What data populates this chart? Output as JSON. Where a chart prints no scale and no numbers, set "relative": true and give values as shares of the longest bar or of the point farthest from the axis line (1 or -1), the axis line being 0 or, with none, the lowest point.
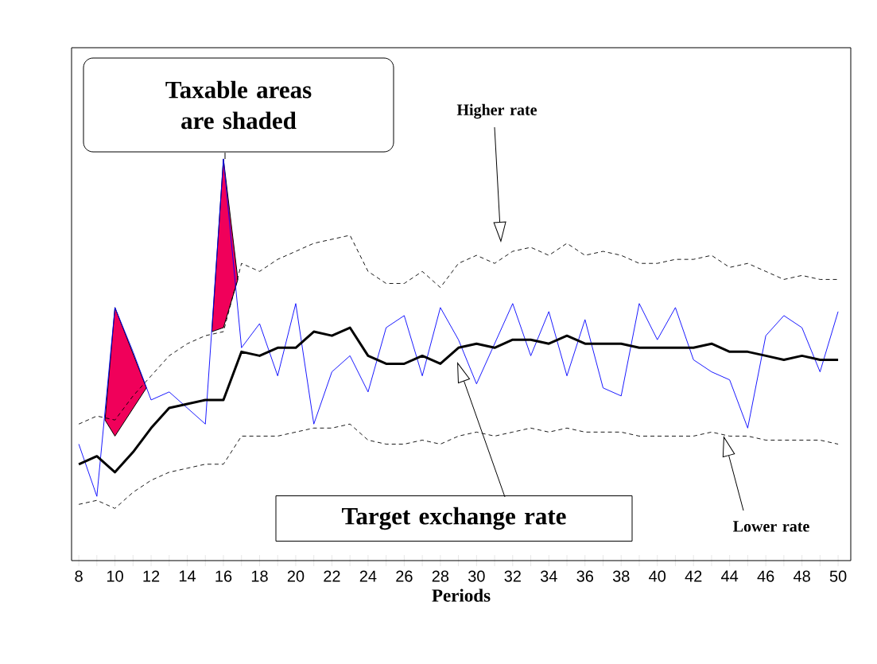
{
  "chart_data": {
    "type": "line",
    "relative": true,
    "xlabel": "Periods",
    "xlim": [
      7.6,
      50.7
    ],
    "xticks": [
      8,
      {
        "value": 9,
        "label": null
      },
      10,
      {
        "value": 11,
        "label": null
      },
      12,
      {
        "value": 13,
        "label": null
      },
      14,
      {
        "value": 15,
        "label": null
      },
      16,
      {
        "value": 17,
        "label": null
      },
      18,
      {
        "value": 19,
        "label": null
      },
      20,
      {
        "value": 21,
        "label": null
      },
      22,
      {
        "value": 23,
        "label": null
      },
      24,
      {
        "value": 25,
        "label": null
      },
      26,
      {
        "value": 27,
        "label": null
      },
      28,
      {
        "value": 29,
        "label": null
      },
      30,
      {
        "value": 31,
        "label": null
      },
      32,
      {
        "value": 33,
        "label": null
      },
      34,
      {
        "value": 35,
        "label": null
      },
      36,
      {
        "value": 37,
        "label": null
      },
      38,
      {
        "value": 39,
        "label": null
      },
      40,
      {
        "value": 41,
        "label": null
      },
      42,
      {
        "value": 43,
        "label": null
      },
      44,
      {
        "value": 45,
        "label": null
      },
      46,
      {
        "value": 47,
        "label": null
      },
      48,
      {
        "value": 49,
        "label": null
      },
      50
    ],
    "x": [
      8,
      9,
      10,
      11,
      12,
      13,
      14,
      15,
      16,
      17,
      18,
      19,
      20,
      21,
      22,
      23,
      24,
      25,
      26,
      27,
      28,
      29,
      30,
      31,
      32,
      33,
      34,
      35,
      36,
      37,
      38,
      39,
      40,
      41,
      42,
      43,
      44,
      45,
      46,
      47,
      48,
      49,
      50
    ],
    "series": [
      {
        "type": "area",
        "color": "#f0005a",
        "x": [
          9.45,
          10,
          11.74
        ],
        "values": [
          0.35,
          0.63,
          0.43
        ]
      },
      {
        "type": "line",
        "color": "#000000",
        "x": [
          9.45,
          10,
          11.74
        ],
        "values": [
          0.35,
          0.31,
          0.43
        ]
      },
      {
        "type": "area",
        "color": "#f0005a",
        "x": [
          15.36,
          16,
          16.8
        ],
        "values": [
          0.57,
          1.0,
          0.7
        ]
      },
      {
        "type": "line",
        "color": "#000000",
        "x": [
          15.36,
          16,
          16.8
        ],
        "values": [
          0.57,
          0.58,
          0.7
        ]
      },
      {
        "color": "#000000",
        "line_style": "dashed",
        "values": [
          0.34,
          0.36,
          0.35,
          0.41,
          0.46,
          0.51,
          0.54,
          0.56,
          0.57,
          0.74,
          0.72,
          0.75,
          0.77,
          0.79,
          0.8,
          0.81,
          0.72,
          0.69,
          0.69,
          0.72,
          0.68,
          0.74,
          0.76,
          0.74,
          0.77,
          0.78,
          0.76,
          0.79,
          0.76,
          0.77,
          0.76,
          0.74,
          0.74,
          0.75,
          0.75,
          0.76,
          0.73,
          0.74,
          0.72,
          0.7,
          0.71,
          0.7,
          0.7
        ]
      },
      {
        "color": "#000000",
        "line_style": "dashed",
        "values": [
          0.14,
          0.15,
          0.13,
          0.17,
          0.2,
          0.22,
          0.23,
          0.24,
          0.24,
          0.31,
          0.31,
          0.31,
          0.32,
          0.33,
          0.33,
          0.34,
          0.3,
          0.29,
          0.29,
          0.3,
          0.29,
          0.31,
          0.32,
          0.31,
          0.32,
          0.33,
          0.32,
          0.33,
          0.32,
          0.32,
          0.32,
          0.31,
          0.31,
          0.31,
          0.31,
          0.32,
          0.31,
          0.31,
          0.3,
          0.3,
          0.3,
          0.3,
          0.29
        ]
      },
      {
        "color": "#0000ff",
        "values": [
          0.29,
          0.16,
          0.63,
          0.52,
          0.4,
          0.42,
          0.38,
          0.34,
          1.0,
          0.53,
          0.59,
          0.46,
          0.64,
          0.34,
          0.47,
          0.51,
          0.42,
          0.58,
          0.61,
          0.46,
          0.63,
          0.55,
          0.44,
          0.54,
          0.64,
          0.51,
          0.62,
          0.46,
          0.6,
          0.43,
          0.41,
          0.64,
          0.55,
          0.63,
          0.5,
          0.47,
          0.45,
          0.33,
          0.56,
          0.61,
          0.58,
          0.47,
          0.62
        ]
      },
      {
        "color": "#000000",
        "values": [
          0.24,
          0.26,
          0.22,
          0.27,
          0.33,
          0.38,
          0.39,
          0.4,
          0.4,
          0.52,
          0.51,
          0.53,
          0.53,
          0.57,
          0.56,
          0.58,
          0.51,
          0.49,
          0.49,
          0.51,
          0.49,
          0.53,
          0.54,
          0.53,
          0.55,
          0.55,
          0.54,
          0.56,
          0.54,
          0.54,
          0.54,
          0.53,
          0.53,
          0.53,
          0.53,
          0.54,
          0.52,
          0.52,
          0.51,
          0.5,
          0.51,
          0.5,
          0.5
        ]
      }
    ],
    "annotations": [
      "Taxable areas are shaded",
      "Higher rate",
      "Target exchange rate",
      "Lower rate"
    ]
  }
}
